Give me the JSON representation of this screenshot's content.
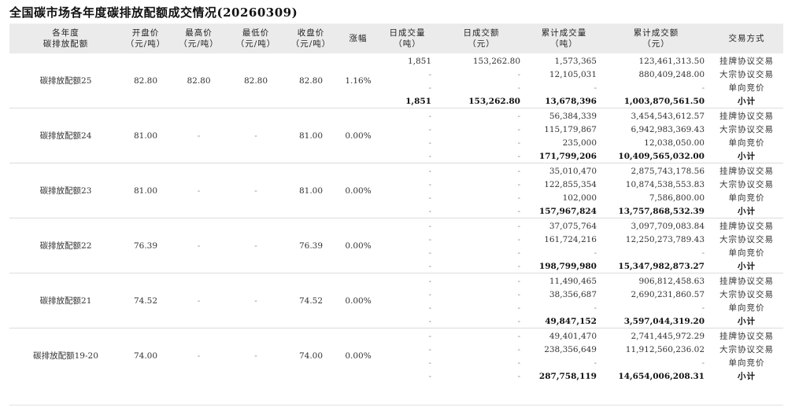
{
  "title": "全国碳市场各年度碳排放配额成交情况(20260309)",
  "headers": [
    [
      "各年度",
      "碳排放配额"
    ],
    [
      "开盘价",
      "（元/吨）"
    ],
    [
      "最高价",
      "（元/吨）"
    ],
    [
      "最低价",
      "（元/吨）"
    ],
    [
      "收盘价",
      "（元/吨）"
    ],
    [
      "涨幅"
    ],
    [
      "日成交量",
      "（吨）"
    ],
    [
      "日成交额",
      "（元）"
    ],
    [
      "累计成交量",
      "（吨）"
    ],
    [
      "累计成交额",
      "（元）"
    ],
    [
      "交易方式"
    ]
  ],
  "groups": [
    {
      "name": "碳排放配额25",
      "open": "82.80",
      "high": "82.80",
      "low": "82.80",
      "close": "82.80",
      "change": "1.16%",
      "rows": [
        [
          "1,851",
          "153,262.80",
          "1,573,365",
          "123,461,313.50",
          "挂牌协议交易"
        ],
        [
          "-",
          "-",
          "12,105,031",
          "880,409,248.00",
          "大宗协议交易"
        ],
        [
          "-",
          "-",
          "-",
          "-",
          "单向竞价"
        ],
        [
          "1,851",
          "153,262.80",
          "13,678,396",
          "1,003,870,561.50",
          "小计"
        ]
      ]
    },
    {
      "name": "碳排放配额24",
      "open": "81.00",
      "high": "-",
      "low": "-",
      "close": "81.00",
      "change": "0.00%",
      "rows": [
        [
          "-",
          "-",
          "56,384,339",
          "3,454,543,612.57",
          "挂牌协议交易"
        ],
        [
          "-",
          "-",
          "115,179,867",
          "6,942,983,369.43",
          "大宗协议交易"
        ],
        [
          "-",
          "-",
          "235,000",
          "12,038,050.00",
          "单向竞价"
        ],
        [
          "-",
          "-",
          "171,799,206",
          "10,409,565,032.00",
          "小计"
        ]
      ]
    },
    {
      "name": "碳排放配额23",
      "open": "81.00",
      "high": "-",
      "low": "-",
      "close": "81.00",
      "change": "0.00%",
      "rows": [
        [
          "-",
          "-",
          "35,010,470",
          "2,875,743,178.56",
          "挂牌协议交易"
        ],
        [
          "-",
          "-",
          "122,855,354",
          "10,874,538,553.83",
          "大宗协议交易"
        ],
        [
          "-",
          "-",
          "102,000",
          "7,586,800.00",
          "单向竞价"
        ],
        [
          "-",
          "-",
          "157,967,824",
          "13,757,868,532.39",
          "小计"
        ]
      ]
    },
    {
      "name": "碳排放配额22",
      "open": "76.39",
      "high": "-",
      "low": "-",
      "close": "76.39",
      "change": "0.00%",
      "rows": [
        [
          "-",
          "-",
          "37,075,764",
          "3,097,709,083.84",
          "挂牌协议交易"
        ],
        [
          "-",
          "-",
          "161,724,216",
          "12,250,273,789.43",
          "大宗协议交易"
        ],
        [
          "-",
          "-",
          "-",
          "-",
          "单向竞价"
        ],
        [
          "-",
          "-",
          "198,799,980",
          "15,347,982,873.27",
          "小计"
        ]
      ]
    },
    {
      "name": "碳排放配额21",
      "open": "74.52",
      "high": "-",
      "low": "-",
      "close": "74.52",
      "change": "0.00%",
      "rows": [
        [
          "-",
          "-",
          "11,490,465",
          "906,812,458.63",
          "挂牌协议交易"
        ],
        [
          "-",
          "-",
          "38,356,687",
          "2,690,231,860.57",
          "大宗协议交易"
        ],
        [
          "-",
          "-",
          "-",
          "-",
          "单向竞价"
        ],
        [
          "-",
          "-",
          "49,847,152",
          "3,597,044,319.20",
          "小计"
        ]
      ]
    },
    {
      "name": "碳排放配额19-20",
      "open": "74.00",
      "high": "-",
      "low": "-",
      "close": "74.00",
      "change": "0.00%",
      "rows": [
        [
          "-",
          "-",
          "49,401,470",
          "2,741,445,972.29",
          "挂牌协议交易"
        ],
        [
          "-",
          "-",
          "238,356,649",
          "11,912,560,236.02",
          "大宗协议交易"
        ],
        [
          "-",
          "-",
          "-",
          "-",
          "单向竞价"
        ],
        [
          "-",
          "-",
          "287,758,119",
          "14,654,006,208.31",
          "小计"
        ]
      ]
    }
  ]
}
